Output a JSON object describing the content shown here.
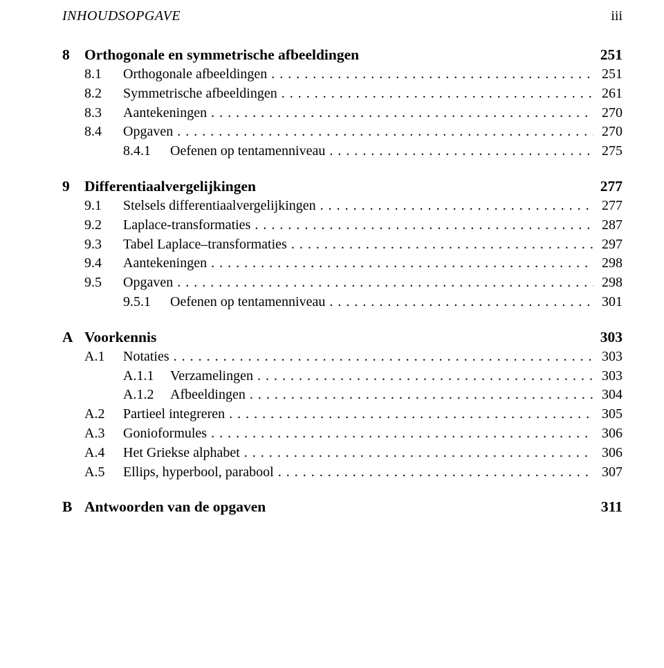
{
  "header": {
    "left": "INHOUDSOPGAVE",
    "right": "iii"
  },
  "entries": [
    {
      "type": "chapter",
      "num": "8",
      "label": "Orthogonale en symmetrische afbeeldingen",
      "page": "251"
    },
    {
      "type": "section",
      "num": "8.1",
      "label": "Orthogonale afbeeldingen",
      "page": "251"
    },
    {
      "type": "section",
      "num": "8.2",
      "label": "Symmetrische afbeeldingen",
      "page": "261"
    },
    {
      "type": "section",
      "num": "8.3",
      "label": "Aantekeningen",
      "page": "270"
    },
    {
      "type": "section",
      "num": "8.4",
      "label": "Opgaven",
      "page": "270"
    },
    {
      "type": "subsection",
      "num": "8.4.1",
      "label": "Oefenen op tentamenniveau",
      "page": "275"
    },
    {
      "type": "chapter",
      "num": "9",
      "label": "Differentiaalvergelijkingen",
      "page": "277"
    },
    {
      "type": "section",
      "num": "9.1",
      "label": "Stelsels differentiaalvergelijkingen",
      "page": "277"
    },
    {
      "type": "section",
      "num": "9.2",
      "label": "Laplace-transformaties",
      "page": "287"
    },
    {
      "type": "section",
      "num": "9.3",
      "label": "Tabel Laplace–transformaties",
      "page": "297"
    },
    {
      "type": "section",
      "num": "9.4",
      "label": "Aantekeningen",
      "page": "298"
    },
    {
      "type": "section",
      "num": "9.5",
      "label": "Opgaven",
      "page": "298"
    },
    {
      "type": "subsection",
      "num": "9.5.1",
      "label": "Oefenen op tentamenniveau",
      "page": "301"
    },
    {
      "type": "chapter",
      "num": "A",
      "label": "Voorkennis",
      "page": "303"
    },
    {
      "type": "section",
      "num": "A.1",
      "label": "Notaties",
      "page": "303"
    },
    {
      "type": "subsection",
      "num": "A.1.1",
      "label": "Verzamelingen",
      "page": "303"
    },
    {
      "type": "subsection",
      "num": "A.1.2",
      "label": "Afbeeldingen",
      "page": "304"
    },
    {
      "type": "section",
      "num": "A.2",
      "label": "Partieel integreren",
      "page": "305"
    },
    {
      "type": "section",
      "num": "A.3",
      "label": "Gonioformules",
      "page": "306"
    },
    {
      "type": "section",
      "num": "A.4",
      "label": "Het Griekse alphabet",
      "page": "306"
    },
    {
      "type": "section",
      "num": "A.5",
      "label": "Ellips, hyperbool, parabool",
      "page": "307"
    },
    {
      "type": "chapter",
      "num": "B",
      "label": "Antwoorden van de opgaven",
      "page": "311"
    }
  ],
  "colors": {
    "text": "#000000",
    "background": "#ffffff"
  },
  "typography": {
    "family": "Computer Modern / Latin Modern serif",
    "body_pt": 20,
    "chapter_pt": 21.5,
    "header_pt": 20
  }
}
